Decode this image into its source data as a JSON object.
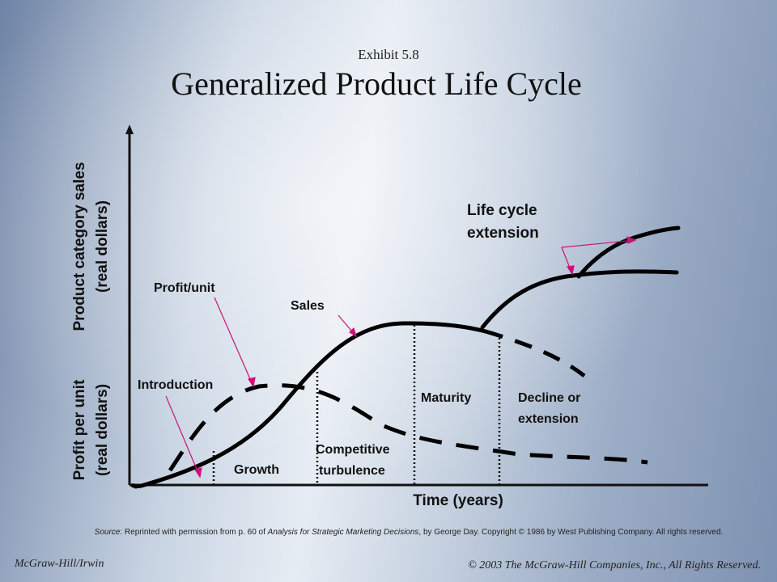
{
  "header": {
    "exhibit": "Exhibit 5.8",
    "title": "Generalized Product Life Cycle"
  },
  "axes": {
    "y_sales_line1": "Product category sales",
    "y_sales_line2": "(real dollars)",
    "y_profit_line1": "Profit per unit",
    "y_profit_line2": "(real dollars)",
    "x_label": "Time (years)"
  },
  "stages": {
    "introduction": "Introduction",
    "growth": "Growth",
    "competitive_line1": "Competitive",
    "competitive_line2": "turbulence",
    "maturity": "Maturity",
    "decline_line1": "Decline or",
    "decline_line2": "extension"
  },
  "curves": {
    "profit_unit": "Profit/unit",
    "sales": "Sales",
    "life_cycle_line1": "Life cycle",
    "life_cycle_line2": "extension"
  },
  "source": {
    "prefix": "Source",
    "text1": ": Reprinted with permission from p. 60 of ",
    "book": "Analysis for Strategic Marketing Decisions",
    "text2": ", by George Day. Copyright © 1986 by West Publishing Company. All rights reserved."
  },
  "footer": {
    "left": "McGraw-Hill/Irwin",
    "right": "© 2003 The McGraw-Hill Companies, Inc., All Rights Reserved."
  },
  "colors": {
    "curve": "#000000",
    "pointer": "#cc1177"
  }
}
